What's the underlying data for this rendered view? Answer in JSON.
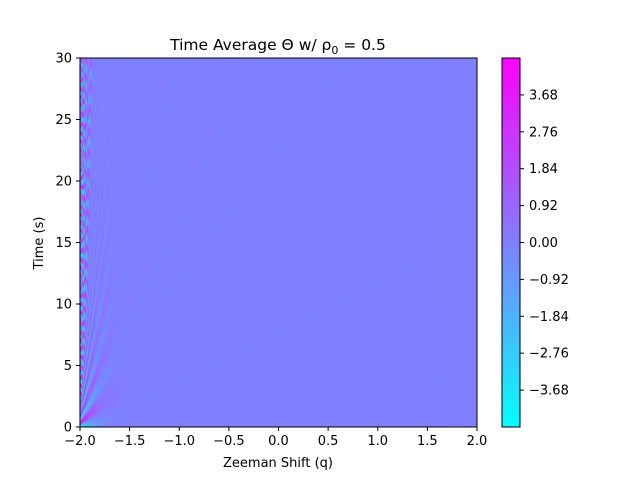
{
  "chart_data": {
    "type": "heatmap",
    "title": "Time Average Θ w/ ρ0 = 0.5",
    "title_parts": {
      "main": "Time Average Θ w/ ρ",
      "subscript": "0",
      "tail": " = 0.5"
    },
    "xlabel": "Zeeman Shift (q)",
    "ylabel": "Time (s)",
    "xlim": [
      -2.0,
      2.0
    ],
    "ylim": [
      0,
      30
    ],
    "x_ticks": [
      -2.0,
      -1.5,
      -1.0,
      -0.5,
      0.0,
      0.5,
      1.0,
      1.5,
      2.0
    ],
    "x_tick_labels": [
      "−2.0",
      "−1.5",
      "−1.0",
      "−0.5",
      "0.0",
      "0.5",
      "1.0",
      "1.5",
      "2.0"
    ],
    "y_ticks": [
      0,
      5,
      10,
      15,
      20,
      25,
      30
    ],
    "y_tick_labels": [
      "0",
      "5",
      "10",
      "15",
      "20",
      "25",
      "30"
    ],
    "colormap": "cool",
    "colormap_colors": {
      "min": "#00ffff",
      "max": "#ff00ff"
    },
    "vmin": -4.6,
    "vmax": 4.6,
    "colorbar_ticks": [
      3.68,
      2.76,
      1.84,
      0.92,
      0.0,
      -0.92,
      -1.84,
      -2.76,
      -3.68
    ],
    "colorbar_tick_labels": [
      "3.68",
      "2.76",
      "1.84",
      "0.92",
      "0.00",
      "−0.92",
      "−1.84",
      "−2.76",
      "−3.68"
    ],
    "field_description_values": {
      "background_value": 0.0,
      "oscillation_region_q": [
        -2.0,
        -1.0
      ],
      "max_amplitude_at_q_-2": 4.6
    },
    "grid": false
  }
}
